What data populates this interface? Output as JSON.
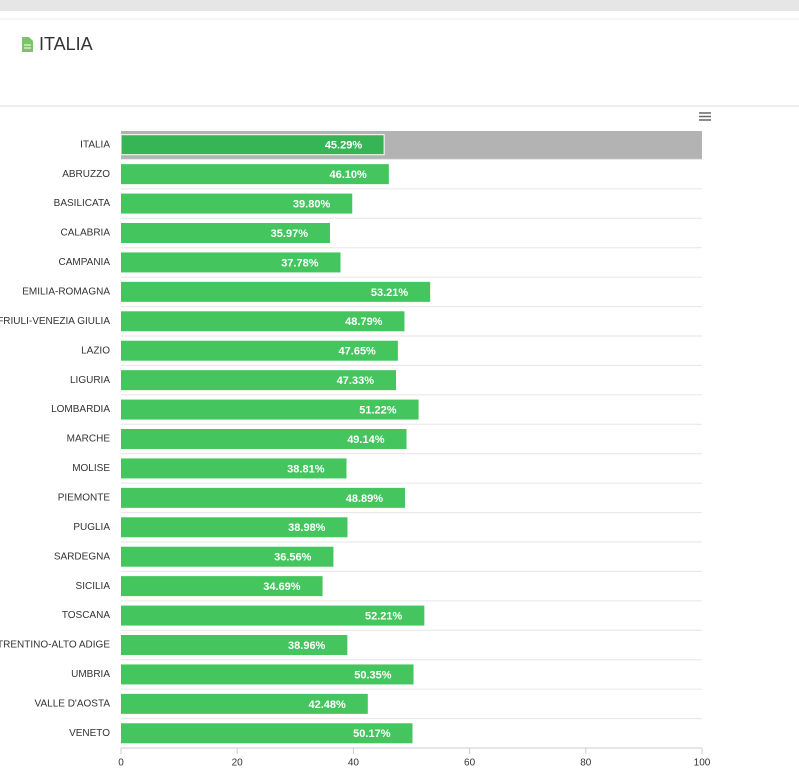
{
  "header": {
    "title": "ITALIA"
  },
  "chart_data": {
    "type": "bar",
    "orientation": "horizontal",
    "categories": [
      "ITALIA",
      "ABRUZZO",
      "BASILICATA",
      "CALABRIA",
      "CAMPANIA",
      "EMILIA-ROMAGNA",
      "FRIULI-VENEZIA GIULIA",
      "LAZIO",
      "LIGURIA",
      "LOMBARDIA",
      "MARCHE",
      "MOLISE",
      "PIEMONTE",
      "PUGLIA",
      "SARDEGNA",
      "SICILIA",
      "TOSCANA",
      "TRENTINO-ALTO ADIGE",
      "UMBRIA",
      "VALLE D'AOSTA",
      "VENETO"
    ],
    "values": [
      45.29,
      46.1,
      39.8,
      35.97,
      37.78,
      53.21,
      48.79,
      47.65,
      47.33,
      51.22,
      49.14,
      38.81,
      48.89,
      38.98,
      36.56,
      34.69,
      52.21,
      38.96,
      50.35,
      42.48,
      50.17
    ],
    "value_labels": [
      "45.29%",
      "46.10%",
      "39.80%",
      "35.97%",
      "37.78%",
      "53.21%",
      "48.79%",
      "47.65%",
      "47.33%",
      "51.22%",
      "49.14%",
      "38.81%",
      "48.89%",
      "38.98%",
      "36.56%",
      "34.69%",
      "52.21%",
      "38.96%",
      "50.35%",
      "42.48%",
      "50.17%"
    ],
    "color": "#44c55e",
    "highlighted_category": 0,
    "highlight_color": "#36b456",
    "highlight_band_color": "#b3b3b3",
    "xlim": [
      0,
      100
    ],
    "xticks": [
      0,
      20,
      40,
      60,
      80,
      100
    ]
  }
}
